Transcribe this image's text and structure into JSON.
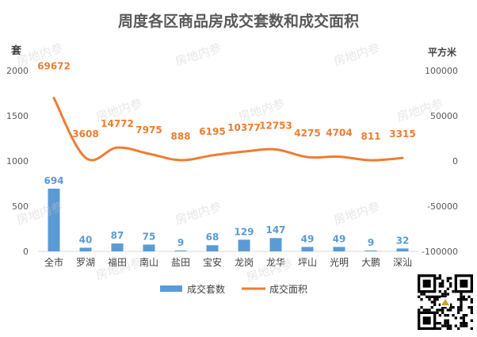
{
  "chart_data": {
    "type": "bar",
    "title": "周度各区商品房成交套数和成交面积",
    "categories": [
      "全市",
      "罗湖",
      "福田",
      "南山",
      "盐田",
      "宝安",
      "龙岗",
      "龙华",
      "坪山",
      "光明",
      "大鹏",
      "深汕"
    ],
    "left_axis": {
      "label": "套",
      "range": [
        0,
        2000
      ],
      "ticks": [
        "0",
        "500",
        "1000",
        "1500",
        "2000"
      ]
    },
    "right_axis": {
      "label": "平方米",
      "range": [
        -100000,
        100000
      ],
      "ticks": [
        "-100000",
        "-50000",
        "0",
        "50000",
        "100000"
      ]
    },
    "series": [
      {
        "name": "成交套数",
        "type": "bar",
        "axis": "left",
        "color": "#5b9bd5",
        "values": [
          694,
          40,
          87,
          75,
          9,
          68,
          129,
          147,
          49,
          49,
          9,
          32
        ]
      },
      {
        "name": "成交面积",
        "type": "line",
        "axis": "right",
        "color": "#ed7d31",
        "values": [
          69672,
          3608,
          14772,
          7975,
          888,
          6195,
          10377,
          12753,
          4275,
          4704,
          811,
          3315
        ]
      }
    ],
    "legend_position": "bottom",
    "grid": false
  },
  "watermark": "房地内参",
  "qr_icon": "qr-code-icon"
}
